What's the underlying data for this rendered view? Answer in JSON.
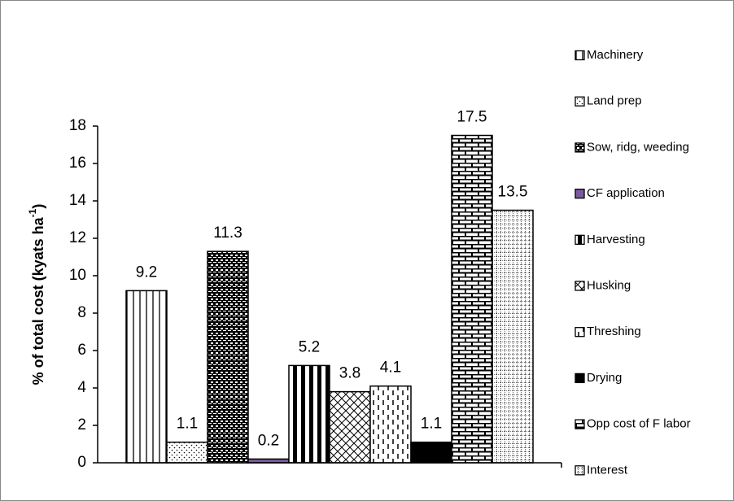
{
  "chart_data": {
    "type": "bar",
    "ylabel": [
      "% of total cost (kyats ha",
      "-1",
      ")"
    ],
    "ylim": [
      0,
      18
    ],
    "yticks": [
      0,
      2,
      4,
      6,
      8,
      10,
      12,
      14,
      16,
      18
    ],
    "series": [
      {
        "name": "Machinery",
        "color": "#000000",
        "pattern": "vertical-lines",
        "values": [
          9.2
        ]
      },
      {
        "name": "Land prep",
        "color": "#000000",
        "pattern": "dots",
        "values": [
          1.1
        ]
      },
      {
        "name": "Sow, ridg, weeding",
        "color": "#000000",
        "pattern": "checker",
        "values": [
          11.3
        ]
      },
      {
        "name": "CF application",
        "color": "#7a5c9e",
        "pattern": "solid",
        "values": [
          0.2
        ]
      },
      {
        "name": "Harvesting",
        "color": "#000000",
        "pattern": "thick-vertical",
        "values": [
          5.2
        ]
      },
      {
        "name": "Husking",
        "color": "#000000",
        "pattern": "crosshatch",
        "values": [
          3.8
        ]
      },
      {
        "name": "Threshing",
        "color": "#000000",
        "pattern": "dashed-vertical",
        "values": [
          4.1
        ]
      },
      {
        "name": "Drying",
        "color": "#000000",
        "pattern": "solid",
        "values": [
          1.1
        ]
      },
      {
        "name": "Opp cost of F labor",
        "color": "#000000",
        "pattern": "brick",
        "values": [
          17.5
        ]
      },
      {
        "name": "Interest",
        "color": "#000000",
        "pattern": "grid",
        "values": [
          13.5
        ]
      }
    ],
    "legend": "right"
  }
}
